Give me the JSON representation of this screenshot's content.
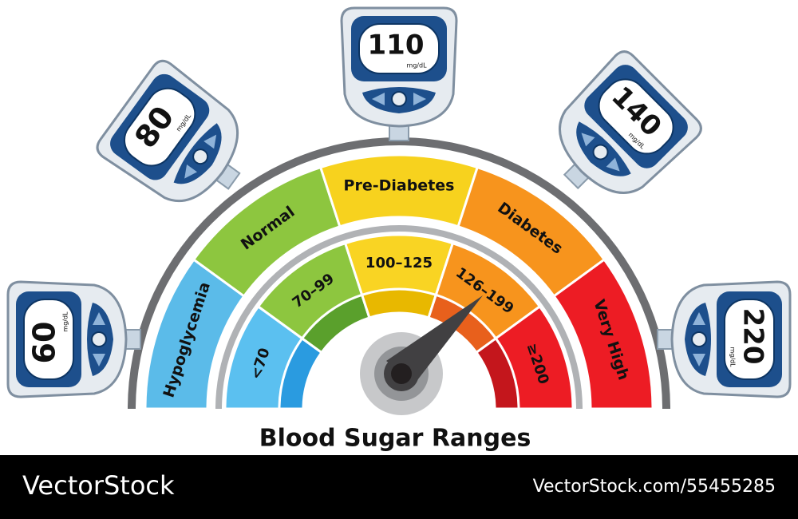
{
  "title": "Blood Sugar Ranges",
  "outer_segments": [
    {
      "label": "Hypoglycemia",
      "color": "#5bbbe9"
    },
    {
      "label": "Normal",
      "color": "#8dc63f"
    },
    {
      "label": "Pre-Diabetes",
      "color": "#f7d21e"
    },
    {
      "label": "Diabetes",
      "color": "#f7941d"
    },
    {
      "label": "Very High",
      "color": "#ed1c24"
    }
  ],
  "inner_segments": [
    {
      "label": "<70",
      "color": "#5bc0f0",
      "shade": "#2a9be0"
    },
    {
      "label": "70–99",
      "color": "#8dc63f",
      "shade": "#5aa02c"
    },
    {
      "label": "100–125",
      "color": "#f9d423",
      "shade": "#e8b800"
    },
    {
      "label": "126–199",
      "color": "#f7941d",
      "shade": "#e8601c"
    },
    {
      "label": "≥200",
      "color": "#ed1c24",
      "shade": "#c4161c"
    }
  ],
  "meters": [
    {
      "value": "60",
      "unit": "mg/dL"
    },
    {
      "value": "80",
      "unit": "mg/dL"
    },
    {
      "value": "110",
      "unit": "mg/dL"
    },
    {
      "value": "140",
      "unit": "mg/dL"
    },
    {
      "value": "220",
      "unit": "mg/dL"
    }
  ],
  "footer": {
    "brand": "VectorStock",
    "id": "VectorStock.com/55455285"
  }
}
